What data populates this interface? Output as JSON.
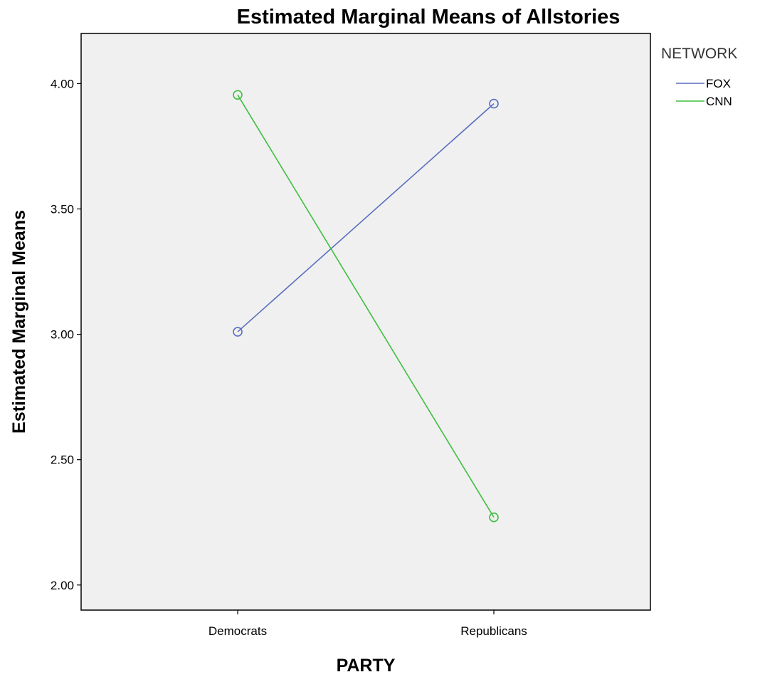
{
  "chart_data": {
    "type": "line",
    "title": "Estimated Marginal Means of Allstories",
    "xlabel": "PARTY",
    "ylabel": "Estimated Marginal Means",
    "categories": [
      "Democrats",
      "Republicans"
    ],
    "yticks": [
      2.0,
      2.5,
      3.0,
      3.5,
      4.0
    ],
    "ytick_labels": [
      "2.00",
      "2.50",
      "3.00",
      "3.50",
      "4.00"
    ],
    "ylim": [
      1.9,
      4.2
    ],
    "grid": false,
    "legend": {
      "title": "NETWORK",
      "placement": "right"
    },
    "series": [
      {
        "name": "FOX",
        "values": [
          3.01,
          3.92
        ],
        "color": "#5a6fc0"
      },
      {
        "name": "CNN",
        "values": [
          3.955,
          2.27
        ],
        "color": "#3fbf3f"
      }
    ]
  },
  "colors": {
    "plot_background": "#f0f0f0",
    "axis_color": "#000000"
  }
}
